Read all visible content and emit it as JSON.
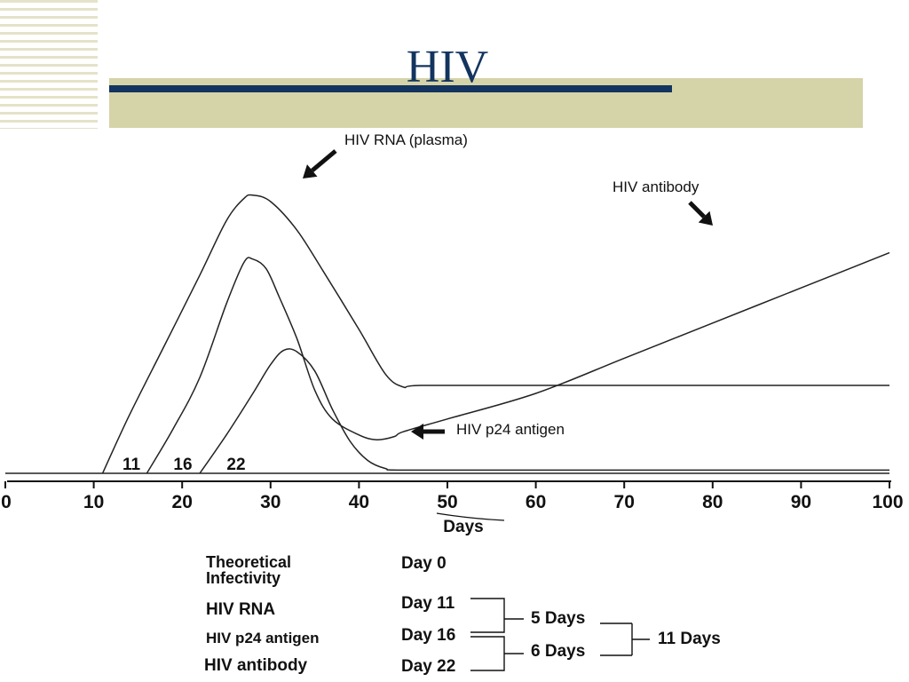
{
  "slide": {
    "title": "HIV",
    "colors": {
      "title": "#12345e",
      "rule": "#12345e",
      "band": "#d5d3a8",
      "stripes": "#e4e2c8"
    }
  },
  "chart_data": {
    "type": "line",
    "xlabel": "Days",
    "ylabel": "",
    "xlim": [
      0,
      100
    ],
    "ylim": [
      0,
      100
    ],
    "x_ticks": [
      0,
      10,
      20,
      30,
      40,
      50,
      60,
      70,
      80,
      90,
      100
    ],
    "grid": false,
    "series": [
      {
        "name": "HIV RNA (plasma)",
        "points": [
          [
            11,
            0
          ],
          [
            14,
            18
          ],
          [
            18,
            40
          ],
          [
            22,
            62
          ],
          [
            25,
            79
          ],
          [
            27,
            86
          ],
          [
            28,
            87
          ],
          [
            30,
            85
          ],
          [
            33,
            76
          ],
          [
            36,
            63
          ],
          [
            40,
            45
          ],
          [
            43,
            31
          ],
          [
            45,
            27
          ],
          [
            47,
            27.5
          ],
          [
            60,
            27.5
          ],
          [
            80,
            27.5
          ],
          [
            100,
            27.5
          ]
        ]
      },
      {
        "name": "HIV p24 antigen",
        "points": [
          [
            16,
            0
          ],
          [
            19,
            14
          ],
          [
            22,
            30
          ],
          [
            25,
            53
          ],
          [
            27,
            66
          ],
          [
            28,
            67
          ],
          [
            29.5,
            64
          ],
          [
            31,
            55
          ],
          [
            33,
            42
          ],
          [
            35,
            26
          ],
          [
            37,
            17
          ],
          [
            40,
            12
          ],
          [
            42,
            10.5
          ],
          [
            44,
            11.5
          ],
          [
            45,
            13
          ],
          [
            50,
            17
          ],
          [
            60,
            25
          ],
          [
            70,
            36
          ],
          [
            80,
            47
          ],
          [
            90,
            58
          ],
          [
            100,
            69
          ]
        ]
      },
      {
        "name": "HIV antibody",
        "points": [
          [
            22,
            0
          ],
          [
            25,
            12
          ],
          [
            28,
            25
          ],
          [
            30,
            34
          ],
          [
            31.5,
            38.5
          ],
          [
            33,
            38
          ],
          [
            35,
            32
          ],
          [
            37,
            20
          ],
          [
            39,
            10
          ],
          [
            41,
            4
          ],
          [
            43,
            1.5
          ],
          [
            45,
            1
          ],
          [
            60,
            1
          ],
          [
            80,
            1
          ],
          [
            100,
            1
          ]
        ]
      }
    ],
    "annotations": [
      {
        "text": "HIV RNA (plasma)"
      },
      {
        "text": "HIV antibody"
      },
      {
        "text": "HIV p24 antigen"
      },
      {
        "text": "11"
      },
      {
        "text": "16"
      },
      {
        "text": "22"
      }
    ]
  },
  "timeline": {
    "rows": [
      {
        "name": "Theoretical Infectivity",
        "day": "Day 0"
      },
      {
        "name": "HIV RNA",
        "day": "Day 11"
      },
      {
        "name": "HIV p24 antigen",
        "day": "Day 16"
      },
      {
        "name": "HIV antibody",
        "day": "Day 22"
      }
    ],
    "gap_1": "5 Days",
    "gap_2": "6 Days",
    "total": "11 Days"
  }
}
